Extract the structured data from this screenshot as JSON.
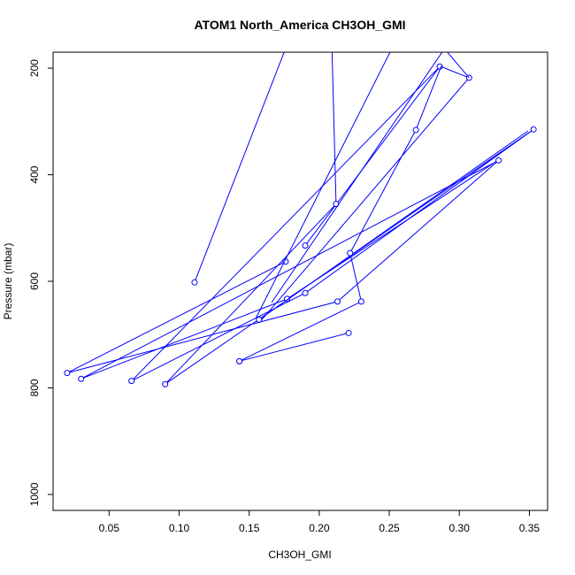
{
  "chart_data": {
    "type": "line",
    "title": "ATOM1 North_America CH3OH_GMI",
    "xlabel": "CH3OH_GMI",
    "ylabel": "Pressure (mbar)",
    "xlim": [
      0.01,
      0.363
    ],
    "ylim": [
      1030,
      170
    ],
    "y_reversed": true,
    "grid": false,
    "marker": "open-circle",
    "color": "#0000ff",
    "xticks": [
      0.05,
      0.1,
      0.15,
      0.2,
      0.25,
      0.3,
      0.35
    ],
    "xtick_labels": [
      "0.05",
      "0.10",
      "0.15",
      "0.20",
      "0.25",
      "0.30",
      "0.35"
    ],
    "yticks": [
      200,
      400,
      600,
      800,
      1000
    ],
    "ytick_labels": [
      "200",
      "400",
      "600",
      "800",
      "1000"
    ],
    "series": [
      {
        "points": [
          {
            "x": 0.221,
            "y": 697,
            "marker": true
          },
          {
            "x": 0.143,
            "y": 750,
            "marker": true
          }
        ]
      },
      {
        "points": [
          {
            "x": 0.176,
            "y": 563,
            "marker": true
          },
          {
            "x": 0.02,
            "y": 772,
            "marker": true
          },
          {
            "x": 0.213,
            "y": 638,
            "marker": true
          },
          {
            "x": 0.328,
            "y": 373,
            "marker": true
          },
          {
            "x": 0.03,
            "y": 783,
            "marker": true
          },
          {
            "x": 0.177,
            "y": 633,
            "marker": true
          },
          {
            "x": 0.324,
            "y": 379,
            "marker": false
          }
        ]
      },
      {
        "points": [
          {
            "x": 0.19,
            "y": 533,
            "marker": true
          },
          {
            "x": 0.286,
            "y": 197,
            "marker": true
          },
          {
            "x": 0.066,
            "y": 787,
            "marker": true
          },
          {
            "x": 0.19,
            "y": 622,
            "marker": true
          },
          {
            "x": 0.353,
            "y": 315,
            "marker": true
          },
          {
            "x": 0.09,
            "y": 793,
            "marker": true
          },
          {
            "x": 0.212,
            "y": 455,
            "marker": true
          },
          {
            "x": 0.209,
            "y": 152,
            "marker": false
          }
        ]
      },
      {
        "points": [
          {
            "x": 0.157,
            "y": 672,
            "marker": true
          },
          {
            "x": 0.349,
            "y": 318,
            "marker": false
          }
        ]
      },
      {
        "points": [
          {
            "x": 0.111,
            "y": 602,
            "marker": true
          },
          {
            "x": 0.177,
            "y": 156,
            "marker": false
          }
        ]
      },
      {
        "points": [
          {
            "x": 0.143,
            "y": 750,
            "marker": true
          },
          {
            "x": 0.23,
            "y": 638,
            "marker": true
          },
          {
            "x": 0.222,
            "y": 547,
            "marker": true
          },
          {
            "x": 0.269,
            "y": 316,
            "marker": true
          },
          {
            "x": 0.287,
            "y": 197,
            "marker": false
          },
          {
            "x": 0.307,
            "y": 218,
            "marker": true
          },
          {
            "x": 0.159,
            "y": 672,
            "marker": false
          }
        ]
      },
      {
        "points": [
          {
            "x": 0.166,
            "y": 640,
            "marker": false
          },
          {
            "x": 0.289,
            "y": 165,
            "marker": false
          }
        ]
      },
      {
        "points": [
          {
            "x": 0.155,
            "y": 668,
            "marker": false
          },
          {
            "x": 0.262,
            "y": 110,
            "marker": false
          }
        ]
      },
      {
        "points": [
          {
            "x": 0.285,
            "y": 150,
            "marker": false
          },
          {
            "x": 0.307,
            "y": 218,
            "marker": false
          }
        ]
      }
    ]
  }
}
